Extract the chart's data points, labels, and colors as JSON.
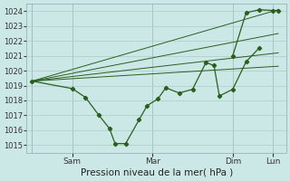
{
  "title": "Pression niveau de la mer( hPa )",
  "bg_color": "#cce8e6",
  "grid_color": "#aaccca",
  "line_color": "#2a5e1e",
  "ylim": [
    1014.5,
    1024.5
  ],
  "yticks": [
    1015,
    1016,
    1017,
    1018,
    1019,
    1020,
    1021,
    1022,
    1023,
    1024
  ],
  "xtick_labels": [
    "Sam",
    "Mar",
    "Dim",
    "Lun"
  ],
  "xlim": [
    -0.2,
    9.5
  ],
  "vline_positions": [
    0,
    1.5,
    4.5,
    7.5,
    9.0
  ],
  "xtick_positions": [
    1.5,
    4.5,
    7.5,
    9.0
  ],
  "series_detailed_x": [
    0,
    1.5,
    2.0,
    2.5,
    2.9,
    3.1,
    3.5,
    4.0,
    4.3,
    4.7,
    5.0,
    5.5,
    6.0,
    6.5,
    6.8,
    7.0,
    7.5,
    8.0,
    8.5
  ],
  "series_detailed_y": [
    1019.3,
    1018.8,
    1018.2,
    1017.0,
    1016.1,
    1015.1,
    1015.1,
    1016.7,
    1017.65,
    1018.1,
    1018.85,
    1018.5,
    1018.75,
    1020.55,
    1020.35,
    1018.3,
    1018.75,
    1020.6,
    1021.55
  ],
  "series_upper_x": [
    7.5,
    8.0,
    8.5,
    9.0,
    9.2
  ],
  "series_upper_y": [
    1021.0,
    1023.9,
    1024.1,
    1024.05,
    1024.05
  ],
  "series_trend1_x": [
    0,
    9.2
  ],
  "series_trend1_y": [
    1019.3,
    1020.3
  ],
  "series_trend2_x": [
    0,
    9.2
  ],
  "series_trend2_y": [
    1019.3,
    1021.2
  ],
  "series_trend3_x": [
    0,
    9.2
  ],
  "series_trend3_y": [
    1019.3,
    1022.5
  ],
  "series_trend4_x": [
    0,
    9.2
  ],
  "series_trend4_y": [
    1019.3,
    1024.1
  ]
}
